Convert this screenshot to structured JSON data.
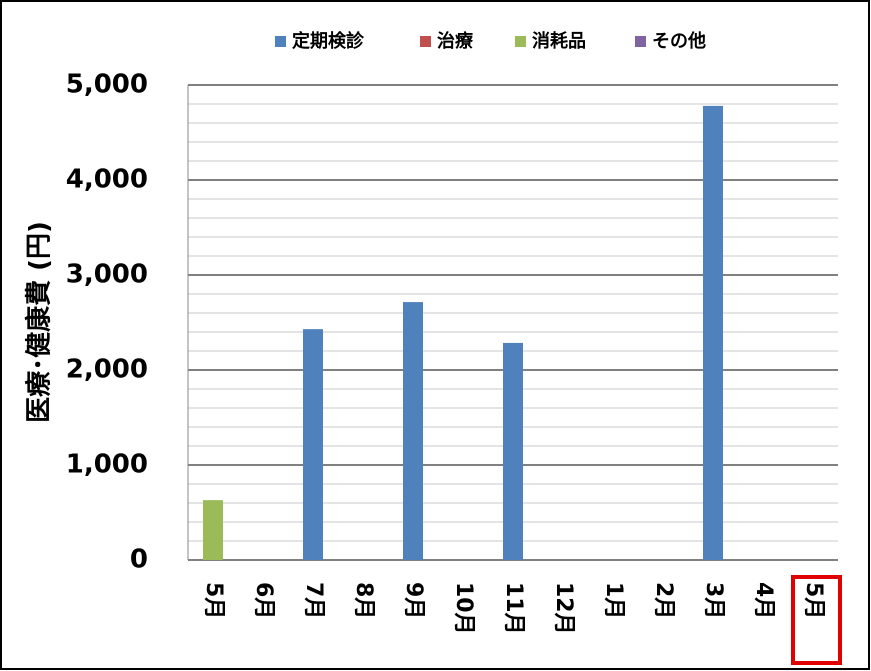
{
  "chart_data": {
    "type": "stacked_bar",
    "y_label": "医療･健康費 (円)",
    "categories": [
      "5月",
      "6月",
      "7月",
      "8月",
      "9月",
      "10月",
      "11月",
      "12月",
      "1月",
      "2月",
      "3月",
      "4月",
      "5月"
    ],
    "series": [
      {
        "name": "定期検診",
        "color": "#4f81bd",
        "values": [
          null,
          null,
          2430,
          null,
          2715,
          null,
          2285,
          null,
          null,
          null,
          4780,
          null,
          null
        ]
      },
      {
        "name": "治療",
        "color": "#c0504d",
        "values": [
          null,
          null,
          null,
          null,
          null,
          null,
          null,
          null,
          null,
          null,
          null,
          null,
          null
        ]
      },
      {
        "name": "消耗品",
        "color": "#9bbb59",
        "values": [
          630,
          null,
          null,
          null,
          null,
          null,
          null,
          null,
          null,
          null,
          null,
          null,
          null
        ]
      },
      {
        "name": "その他",
        "color": "#8064a2",
        "values": [
          null,
          null,
          null,
          null,
          null,
          null,
          null,
          null,
          null,
          null,
          null,
          null,
          null
        ]
      }
    ],
    "ylim": [
      0,
      5000
    ],
    "yticks": [
      0,
      {
        "value": 1000,
        "label": "1,000"
      },
      {
        "value": 2000,
        "label": "2,000"
      },
      {
        "value": 3000,
        "label": "3,000"
      },
      {
        "value": 4000,
        "label": "4,000"
      },
      {
        "value": 5000,
        "label": "5,000"
      }
    ],
    "minor_yticks": [
      200,
      400,
      600,
      800,
      1200,
      1400,
      1600,
      1800,
      2200,
      2400,
      2600,
      2800,
      3200,
      3400,
      3600,
      3800,
      4200,
      4400,
      4600,
      4800
    ],
    "grid": true,
    "legend": "top"
  }
}
